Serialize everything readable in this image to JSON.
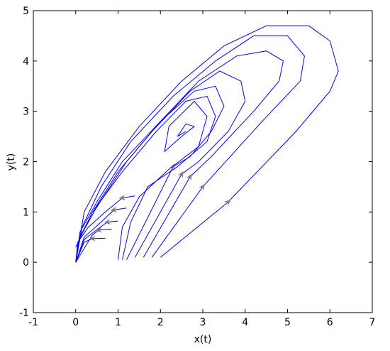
{
  "chart_data": {
    "type": "line",
    "x_label": "x(t)",
    "y_label": "y(t)",
    "xlim": [
      -1,
      7
    ],
    "ylim": [
      -1,
      5
    ],
    "xticks": [
      -1,
      0,
      1,
      2,
      3,
      4,
      5,
      6,
      7
    ],
    "yticks": [
      -1,
      0,
      1,
      2,
      3,
      4,
      5
    ],
    "color": "#0000ff",
    "arrow_color": "#808080",
    "series": [
      {
        "x": [
          2.0,
          3.6,
          5.2,
          6.0,
          6.2,
          6.0,
          5.5,
          4.5,
          3.5,
          2.5,
          1.5,
          0.7,
          0.2,
          0.1,
          0
        ],
        "values": [
          0.1,
          1.2,
          2.6,
          3.4,
          3.8,
          4.4,
          4.7,
          4.7,
          4.3,
          3.6,
          2.7,
          1.8,
          1.0,
          0.5,
          0
        ],
        "arrow": true
      },
      {
        "x": [
          1.8,
          3.0,
          4.4,
          5.3,
          5.4,
          5.0,
          4.2,
          3.3,
          2.3,
          1.3,
          0.6,
          0.15,
          0
        ],
        "values": [
          0.1,
          1.5,
          2.8,
          3.6,
          4.1,
          4.5,
          4.5,
          4.0,
          3.3,
          2.4,
          1.5,
          0.7,
          0
        ],
        "arrow": true
      },
      {
        "x": [
          1.6,
          2.7,
          3.2,
          4.2,
          4.8,
          4.9,
          4.5,
          3.8,
          2.9,
          2.0,
          1.1,
          0.5,
          0.1,
          0
        ],
        "values": [
          0.1,
          1.7,
          2.1,
          3.0,
          3.6,
          4.0,
          4.2,
          4.1,
          3.6,
          2.8,
          2.0,
          1.2,
          0.6,
          0
        ],
        "arrow": true
      },
      {
        "x": [
          1.4,
          2.5,
          2.9,
          3.6,
          4.0,
          3.9,
          3.4,
          2.7,
          1.8,
          1.0,
          0.4,
          0.1,
          0
        ],
        "values": [
          0.1,
          1.75,
          2.0,
          2.6,
          3.2,
          3.6,
          3.8,
          3.4,
          2.6,
          1.8,
          1.0,
          0.5,
          0
        ],
        "arrow": true
      },
      {
        "x": [
          1.2,
          2.3,
          2.7,
          3.2,
          3.5,
          3.3,
          2.8,
          2.0,
          1.2,
          0.5,
          0.1,
          0
        ],
        "values": [
          0.05,
          1.9,
          2.1,
          2.6,
          3.1,
          3.5,
          3.4,
          2.8,
          2.0,
          1.1,
          0.5,
          0
        ],
        "arrow": true
      },
      {
        "x": [
          1.1,
          1.3,
          1.7,
          2.4,
          3.1,
          3.3,
          3.1,
          2.6,
          1.9,
          1.1,
          0.4,
          0
        ],
        "values": [
          0.05,
          0.8,
          1.5,
          1.9,
          2.4,
          2.9,
          3.3,
          3.2,
          2.6,
          1.8,
          1.0,
          0.3
        ],
        "arrow": false
      },
      {
        "x": [
          1.0,
          1.1,
          1.5,
          2.2,
          2.9,
          3.1,
          2.8,
          2.2,
          2.1,
          2.5,
          2.8,
          2.6,
          2.4,
          2.6
        ],
        "values": [
          0.05,
          0.7,
          1.3,
          1.85,
          2.3,
          2.9,
          3.2,
          2.7,
          2.2,
          2.5,
          2.7,
          2.75,
          2.5,
          2.6
        ],
        "arrow": false
      },
      {
        "x": [
          1.4,
          1.1,
          0.7,
          0.3,
          0.05,
          0
        ],
        "values": [
          1.32,
          1.28,
          1.0,
          0.7,
          0.4,
          0
        ],
        "arrow": true
      },
      {
        "x": [
          1.2,
          0.9,
          0.6,
          0.2,
          0
        ],
        "values": [
          1.08,
          1.04,
          0.8,
          0.5,
          0
        ],
        "arrow": true
      },
      {
        "x": [
          1.0,
          0.75,
          0.5,
          0.2,
          0
        ],
        "values": [
          0.82,
          0.8,
          0.65,
          0.45,
          0
        ],
        "arrow": true
      },
      {
        "x": [
          0.85,
          0.55,
          0.4,
          0
        ],
        "values": [
          0.66,
          0.64,
          0.55,
          0
        ],
        "arrow": true
      },
      {
        "x": [
          0.7,
          0.4,
          0.2,
          0
        ],
        "values": [
          0.48,
          0.47,
          0.4,
          0
        ],
        "arrow": true
      }
    ]
  }
}
